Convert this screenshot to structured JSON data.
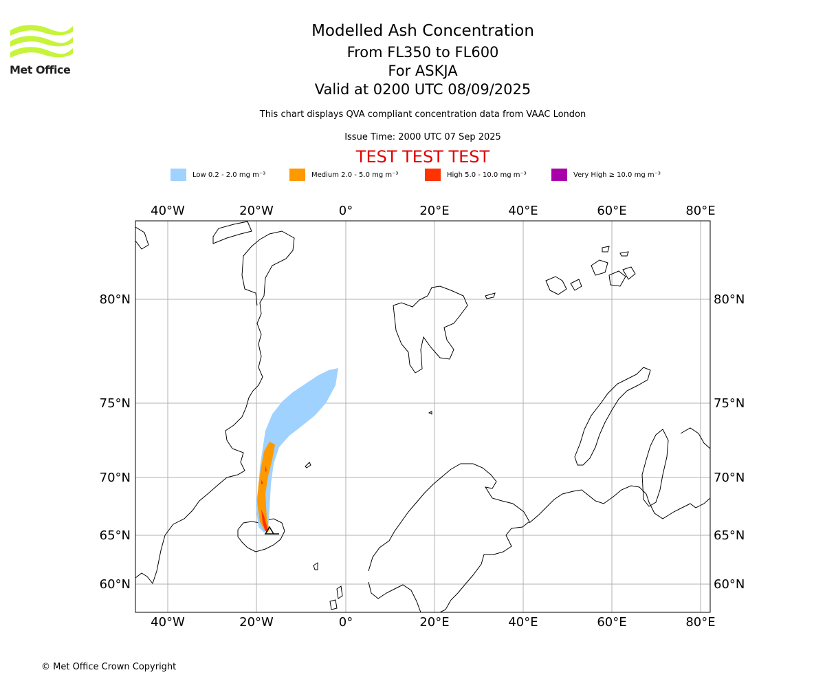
{
  "header": {
    "logo_text": "Met Office",
    "title": "Modelled Ash Concentration",
    "level": "From FL350 to FL600",
    "volcano": "For ASKJA",
    "valid": "Valid at 0200 UTC 08/09/2025",
    "compliance": "This chart displays QVA compliant concentration data from VAAC London",
    "issue": "Issue Time: 2000 UTC 07 Sep 2025",
    "test": "TEST TEST TEST"
  },
  "legend": [
    {
      "label": "Low 0.2 - 2.0 mg m⁻³",
      "color": "#a0d2ff"
    },
    {
      "label": "Medium 2.0 - 5.0 mg m⁻³",
      "color": "#ff9900"
    },
    {
      "label": "High 5.0 - 10.0 mg m⁻³",
      "color": "#ff3300"
    },
    {
      "label": "Very High ≥ 10.0 mg m⁻³",
      "color": "#aa00aa"
    }
  ],
  "map": {
    "lon_ticks": [
      "40°W",
      "20°W",
      "0°",
      "20°E",
      "40°E",
      "60°E",
      "80°E"
    ],
    "lat_ticks": [
      "80°N",
      "75°N",
      "70°N",
      "65°N",
      "60°N"
    ]
  },
  "footer": {
    "copyright": "© Met Office Crown Copyright"
  }
}
